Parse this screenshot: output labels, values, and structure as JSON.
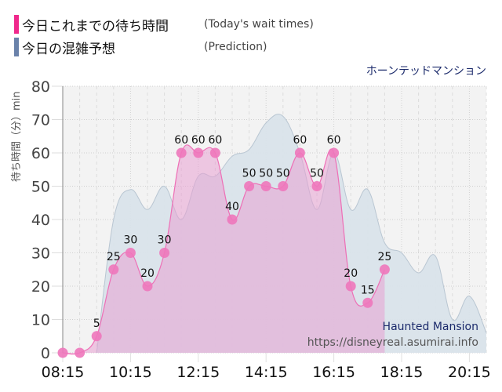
{
  "legend": {
    "actual": {
      "label_jp": "今日これまでの待ち時間",
      "label_en": "(Today's wait times)",
      "color": "#f0288c"
    },
    "prediction": {
      "label_jp": "今日の混雑予想",
      "label_en": "(Prediction)",
      "color": "#6a82aa"
    }
  },
  "ride_name_jp": "ホーンテッドマンション",
  "y_axis_label": "待ち時間（分）min",
  "watermark": {
    "ride_name_en": "Haunted Mansion",
    "url": "https://disneyreal.asumirai.info"
  },
  "colors": {
    "plot_bg": "#f3f3f3",
    "prediction_fill": "#d9e3ea",
    "prediction_line": "#b9c6d2",
    "actual_fill": "#f2b8dc",
    "actual_line": "#ee6fb6",
    "actual_dot": "#ee77bb"
  },
  "chart_data": {
    "type": "area",
    "title": "ホーンテッドマンション",
    "xlabel": "",
    "ylabel": "待ち時間（分）min",
    "ylim": [
      0,
      80
    ],
    "yticks": [
      0,
      10,
      20,
      30,
      40,
      50,
      60,
      70,
      80
    ],
    "xtick_labels": [
      "08:15",
      "10:15",
      "12:15",
      "14:15",
      "16:15",
      "18:15",
      "20:15"
    ],
    "x": [
      "08:15",
      "08:45",
      "09:15",
      "09:45",
      "10:15",
      "10:45",
      "11:15",
      "11:45",
      "12:15",
      "12:45",
      "13:15",
      "13:45",
      "14:15",
      "14:45",
      "15:15",
      "15:45",
      "16:15",
      "16:45",
      "17:15",
      "17:45",
      "18:15",
      "18:45",
      "19:15",
      "19:45",
      "20:15",
      "20:45"
    ],
    "grid": true,
    "legend_position": "top-left",
    "series": [
      {
        "name": "今日これまでの待ち時間 (Today's wait times)",
        "values": [
          0,
          0,
          5,
          25,
          30,
          20,
          30,
          60,
          60,
          60,
          40,
          50,
          50,
          50,
          60,
          50,
          60,
          20,
          15,
          25
        ]
      },
      {
        "name": "今日の混雑予想 (Prediction)",
        "values": [
          null,
          null,
          0,
          40,
          49,
          43,
          50,
          40,
          53,
          53,
          59,
          61,
          69,
          71,
          60,
          43,
          60,
          43,
          49,
          33,
          30,
          24,
          29,
          10,
          17,
          6
        ]
      }
    ]
  }
}
